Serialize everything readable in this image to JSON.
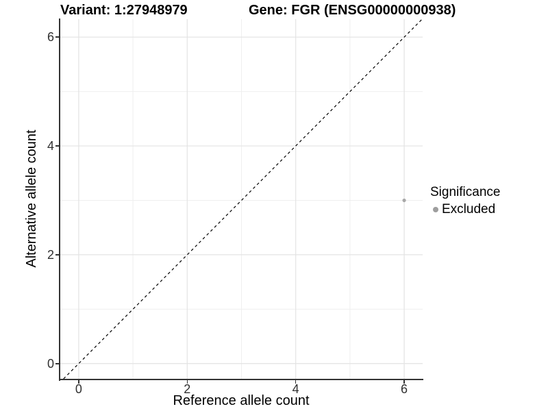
{
  "chart_data": {
    "type": "scatter",
    "title_left": "Variant: 1:27948979",
    "title_right": "Gene: FGR (ENSG00000000938)",
    "xlabel": "Reference allele count",
    "ylabel": "Alternative allele count",
    "xlim": [
      -0.34,
      6.34
    ],
    "ylim": [
      -0.28,
      6.33
    ],
    "x_ticks": [
      0,
      2,
      4,
      6
    ],
    "y_ticks": [
      0,
      2,
      4,
      6
    ],
    "minor_ticks": [
      1,
      3,
      5
    ],
    "grid": {
      "major_color": "#e3e3e3",
      "minor_color": "#efefef"
    },
    "axis": {
      "line_color": "#333333",
      "tick_color": "#333333",
      "tick_label_color": "#303030"
    },
    "identity_line": {
      "slope": 1,
      "intercept": 0,
      "style": "dashed",
      "color": "#000000",
      "width": 1.2,
      "dash": "4,4"
    },
    "points": [
      {
        "x": 6,
        "y": 3,
        "series": "Excluded",
        "color": "#a8a8a8",
        "radius": 2.6
      }
    ],
    "legend": {
      "title": "Significance",
      "position": "right",
      "entries": [
        {
          "label": "Excluded",
          "color": "#9e9e9e",
          "marker": "circle"
        }
      ]
    }
  }
}
